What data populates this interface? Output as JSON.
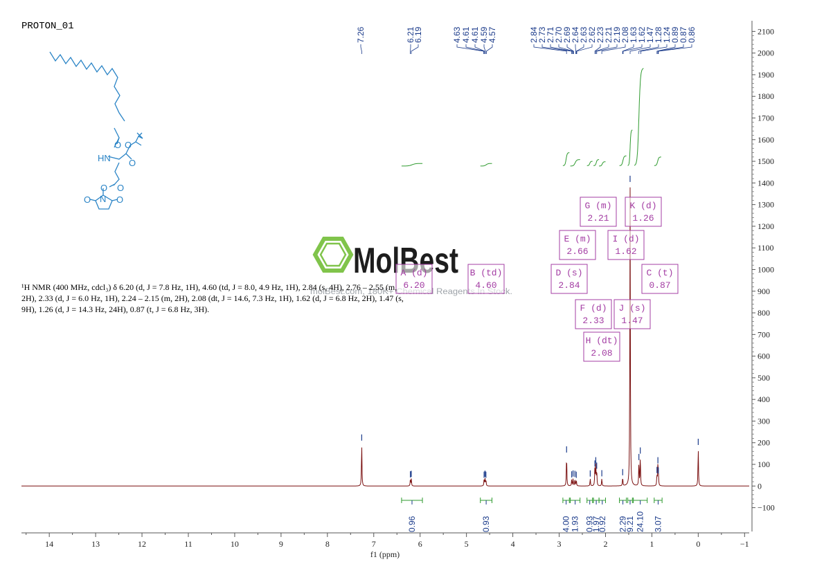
{
  "title": "PROTON_01",
  "description": "¹H NMR (400 MHz, cdcl₃) δ 6.20 (d, J = 7.8 Hz, 1H), 4.60 (td, J = 8.0, 4.9 Hz, 1H), 2.84 (s, 4H), 2.76 – 2.55 (m, 2H), 2.33 (d, J = 6.0 Hz, 1H), 2.24 – 2.15 (m, 2H), 2.08 (dt, J = 14.6, 7.3 Hz, 1H), 1.62 (d, J = 6.8 Hz, 2H), 1.47 (s, 9H), 1.26 (d, J = 14.3 Hz, 24H), 0.87 (t, J = 6.8 Hz, 3H).",
  "watermark": {
    "brand": "MolBest",
    "tagline": "molBest.com, 180K+ Chemical Reagents In Stock."
  },
  "molecule_atoms": [
    "HN",
    "O",
    "O",
    "O",
    "O",
    "O",
    "N",
    "O",
    "O"
  ],
  "colors": {
    "spectrum": "#7a0f0f",
    "integral": "#2e9a2e",
    "multiplet_box": "#a33ca3",
    "peak_label": "#1a3a8a",
    "molecule": "#2a84c6",
    "logo": "#7ac142"
  },
  "chart_data": {
    "type": "line",
    "xlabel": "f1 (ppm)",
    "xlim": [
      14.6,
      -1.1
    ],
    "ylim": [
      -210,
      2130
    ],
    "x_ticks": [
      "14",
      "13",
      "12",
      "11",
      "10",
      "9",
      "8",
      "7",
      "6",
      "5",
      "4",
      "3",
      "2",
      "1",
      "0",
      "-1"
    ],
    "y_ticks": [
      "-100",
      "0",
      "100",
      "200",
      "300",
      "400",
      "500",
      "600",
      "700",
      "800",
      "900",
      "1000",
      "1100",
      "1200",
      "1300",
      "1400",
      "1500",
      "1600",
      "1700",
      "1800",
      "1900",
      "2000",
      "2100"
    ],
    "peaks": [
      {
        "ppm": 7.26,
        "height": 200
      },
      {
        "ppm": 6.21,
        "height": 30
      },
      {
        "ppm": 6.19,
        "height": 32
      },
      {
        "ppm": 4.62,
        "height": 28
      },
      {
        "ppm": 4.6,
        "height": 33
      },
      {
        "ppm": 4.58,
        "height": 28
      },
      {
        "ppm": 2.84,
        "height": 145
      },
      {
        "ppm": 2.73,
        "height": 30
      },
      {
        "ppm": 2.7,
        "height": 34
      },
      {
        "ppm": 2.66,
        "height": 32
      },
      {
        "ppm": 2.63,
        "height": 28
      },
      {
        "ppm": 2.33,
        "height": 34
      },
      {
        "ppm": 2.23,
        "height": 80
      },
      {
        "ppm": 2.21,
        "height": 95
      },
      {
        "ppm": 2.19,
        "height": 70
      },
      {
        "ppm": 2.08,
        "height": 35
      },
      {
        "ppm": 1.63,
        "height": 40
      },
      {
        "ppm": 1.47,
        "height": 1395
      },
      {
        "ppm": 1.28,
        "height": 110
      },
      {
        "ppm": 1.25,
        "height": 140
      },
      {
        "ppm": 0.89,
        "height": 50
      },
      {
        "ppm": 0.87,
        "height": 95
      },
      {
        "ppm": 0.86,
        "height": 48
      },
      {
        "ppm": 0.0,
        "height": 180
      }
    ],
    "peak_labels": [
      "7.26",
      "6.21",
      "6.19",
      "4.63",
      "4.61",
      "4.61",
      "4.59",
      "4.57",
      "2.84",
      "2.73",
      "2.71",
      "2.70",
      "2.69",
      "2.64",
      "2.63",
      "2.62",
      "2.23",
      "2.21",
      "2.19",
      "2.08",
      "1.63",
      "1.62",
      "1.47",
      "1.28",
      "1.24",
      "0.89",
      "0.87",
      "0.86"
    ],
    "integrations": [
      {
        "from": 6.4,
        "to": 5.95,
        "value": "0.96"
      },
      {
        "from": 4.7,
        "to": 4.45,
        "value": "0.93"
      },
      {
        "from": 2.92,
        "to": 2.78,
        "value": "4.00"
      },
      {
        "from": 2.76,
        "to": 2.55,
        "value": "1.93"
      },
      {
        "from": 2.4,
        "to": 2.28,
        "value": "0.93"
      },
      {
        "from": 2.26,
        "to": 2.14,
        "value": "1.97"
      },
      {
        "from": 2.14,
        "to": 2.0,
        "value": "0.92"
      },
      {
        "from": 1.7,
        "to": 1.55,
        "value": "2.29"
      },
      {
        "from": 1.52,
        "to": 1.42,
        "value": "9.21"
      },
      {
        "from": 1.4,
        "to": 1.1,
        "value": "24.10"
      },
      {
        "from": 0.95,
        "to": 0.78,
        "value": "3.07"
      }
    ],
    "multiplets": [
      {
        "letter": "A",
        "type": "d",
        "shift": "6.20",
        "ppm": 6.2
      },
      {
        "letter": "B",
        "type": "td",
        "shift": "4.60",
        "ppm": 4.6
      },
      {
        "letter": "C",
        "type": "t",
        "shift": "0.87",
        "ppm": 0.87
      },
      {
        "letter": "D",
        "type": "s",
        "shift": "2.84",
        "ppm": 2.84
      },
      {
        "letter": "E",
        "type": "m",
        "shift": "2.66",
        "ppm": 2.66
      },
      {
        "letter": "F",
        "type": "d",
        "shift": "2.33",
        "ppm": 2.33
      },
      {
        "letter": "G",
        "type": "m",
        "shift": "2.21",
        "ppm": 2.21
      },
      {
        "letter": "H",
        "type": "dt",
        "shift": "2.08",
        "ppm": 2.08
      },
      {
        "letter": "I",
        "type": "d",
        "shift": "1.62",
        "ppm": 1.62
      },
      {
        "letter": "J",
        "type": "s",
        "shift": "1.47",
        "ppm": 1.47
      },
      {
        "letter": "K",
        "type": "d",
        "shift": "1.26",
        "ppm": 1.26
      }
    ]
  }
}
